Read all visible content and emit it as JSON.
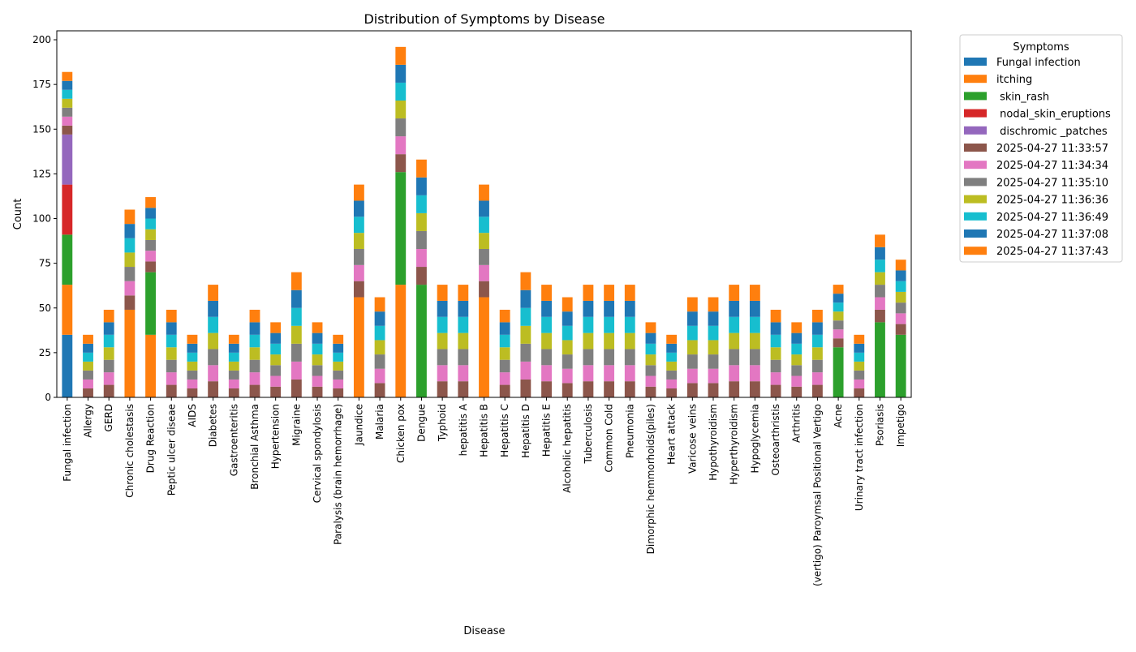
{
  "chart_data": {
    "type": "bar",
    "stacked": true,
    "title": "Distribution of Symptoms by Disease",
    "xlabel": "Disease",
    "ylabel": "Count",
    "ylim": [
      0,
      205
    ],
    "yticks": [
      0,
      25,
      50,
      75,
      100,
      125,
      150,
      175,
      200
    ],
    "grid": false,
    "legend": {
      "title": "Symptoms",
      "placement": "outside-top-right"
    },
    "categories": [
      "Fungal infection",
      "Allergy",
      "GERD",
      "Chronic cholestasis",
      "Drug Reaction",
      "Peptic ulcer diseae",
      "AIDS",
      "Diabetes",
      "Gastroenteritis",
      "Bronchial Asthma",
      "Hypertension",
      "Migraine",
      "Cervical spondylosis",
      "Paralysis (brain hemorrhage)",
      "Jaundice",
      "Malaria",
      "Chicken pox",
      "Dengue",
      "Typhoid",
      "hepatitis A",
      "Hepatitis B",
      "Hepatitis C",
      "Hepatitis D",
      "Hepatitis E",
      "Alcoholic hepatitis",
      "Tuberculosis",
      "Common Cold",
      "Pneumonia",
      "Dimorphic hemmorhoids(piles)",
      "Heart attack",
      "Varicose veins",
      "Hypothyroidism",
      "Hyperthyroidism",
      "Hypoglycemia",
      "Osteoarthristis",
      "Arthritis",
      "(vertigo) Paroymsal  Positional Vertigo",
      "Acne",
      "Urinary tract infection",
      "Psoriasis",
      "Impetigo"
    ],
    "series": [
      {
        "name": "Fungal infection",
        "color": "#1f77b4",
        "values": [
          35,
          0,
          0,
          0,
          0,
          0,
          0,
          0,
          0,
          0,
          0,
          0,
          0,
          0,
          0,
          0,
          0,
          0,
          0,
          0,
          0,
          0,
          0,
          0,
          0,
          0,
          0,
          0,
          0,
          0,
          0,
          0,
          0,
          0,
          0,
          0,
          0,
          0,
          0,
          0,
          0
        ]
      },
      {
        "name": "itching",
        "color": "#ff7f0e",
        "values": [
          28,
          0,
          0,
          49,
          35,
          0,
          0,
          0,
          0,
          0,
          0,
          0,
          0,
          0,
          56,
          0,
          63,
          0,
          0,
          0,
          56,
          0,
          0,
          0,
          0,
          0,
          0,
          0,
          0,
          0,
          0,
          0,
          0,
          0,
          0,
          0,
          0,
          0,
          0,
          0,
          0
        ]
      },
      {
        "name": " skin_rash",
        "color": "#2ca02c",
        "values": [
          28,
          0,
          0,
          0,
          35,
          0,
          0,
          0,
          0,
          0,
          0,
          0,
          0,
          0,
          0,
          0,
          63,
          63,
          0,
          0,
          0,
          0,
          0,
          0,
          0,
          0,
          0,
          0,
          0,
          0,
          0,
          0,
          0,
          0,
          0,
          0,
          0,
          28,
          0,
          42,
          35
        ]
      },
      {
        "name": " nodal_skin_eruptions",
        "color": "#d62728",
        "values": [
          28,
          0,
          0,
          0,
          0,
          0,
          0,
          0,
          0,
          0,
          0,
          0,
          0,
          0,
          0,
          0,
          0,
          0,
          0,
          0,
          0,
          0,
          0,
          0,
          0,
          0,
          0,
          0,
          0,
          0,
          0,
          0,
          0,
          0,
          0,
          0,
          0,
          0,
          0,
          0,
          0
        ]
      },
      {
        "name": " dischromic _patches",
        "color": "#9467bd",
        "values": [
          28,
          0,
          0,
          0,
          0,
          0,
          0,
          0,
          0,
          0,
          0,
          0,
          0,
          0,
          0,
          0,
          0,
          0,
          0,
          0,
          0,
          0,
          0,
          0,
          0,
          0,
          0,
          0,
          0,
          0,
          0,
          0,
          0,
          0,
          0,
          0,
          0,
          0,
          0,
          0,
          0
        ]
      },
      {
        "name": "2025-04-27 11:33:57",
        "color": "#8c564b",
        "values": [
          5,
          5,
          7,
          8,
          6,
          7,
          5,
          9,
          5,
          7,
          6,
          10,
          6,
          5,
          9,
          8,
          10,
          10,
          9,
          9,
          9,
          7,
          10,
          9,
          8,
          9,
          9,
          9,
          6,
          5,
          8,
          8,
          9,
          9,
          7,
          6,
          7,
          5,
          5,
          7,
          6
        ]
      },
      {
        "name": "2025-04-27 11:34:34",
        "color": "#e377c2",
        "values": [
          5,
          5,
          7,
          8,
          6,
          7,
          5,
          9,
          5,
          7,
          6,
          10,
          6,
          5,
          9,
          8,
          10,
          10,
          9,
          9,
          9,
          7,
          10,
          9,
          8,
          9,
          9,
          9,
          6,
          5,
          8,
          8,
          9,
          9,
          7,
          6,
          7,
          5,
          5,
          7,
          6
        ]
      },
      {
        "name": "2025-04-27 11:35:10",
        "color": "#7f7f7f",
        "values": [
          5,
          5,
          7,
          8,
          6,
          7,
          5,
          9,
          5,
          7,
          6,
          10,
          6,
          5,
          9,
          8,
          10,
          10,
          9,
          9,
          9,
          7,
          10,
          9,
          8,
          9,
          9,
          9,
          6,
          5,
          8,
          8,
          9,
          9,
          7,
          6,
          7,
          5,
          5,
          7,
          6
        ]
      },
      {
        "name": "2025-04-27 11:36:36",
        "color": "#bcbd22",
        "values": [
          5,
          5,
          7,
          8,
          6,
          7,
          5,
          9,
          5,
          7,
          6,
          10,
          6,
          5,
          9,
          8,
          10,
          10,
          9,
          9,
          9,
          7,
          10,
          9,
          8,
          9,
          9,
          9,
          6,
          5,
          8,
          8,
          9,
          9,
          7,
          6,
          7,
          5,
          5,
          7,
          6
        ]
      },
      {
        "name": "2025-04-27 11:36:49",
        "color": "#17becf",
        "values": [
          5,
          5,
          7,
          8,
          6,
          7,
          5,
          9,
          5,
          7,
          6,
          10,
          6,
          5,
          9,
          8,
          10,
          10,
          9,
          9,
          9,
          7,
          10,
          9,
          8,
          9,
          9,
          9,
          6,
          5,
          8,
          8,
          9,
          9,
          7,
          6,
          7,
          5,
          5,
          7,
          6
        ]
      },
      {
        "name": "2025-04-27 11:37:08",
        "color": "#1f77b4",
        "values": [
          5,
          5,
          7,
          8,
          6,
          7,
          5,
          9,
          5,
          7,
          6,
          10,
          6,
          5,
          9,
          8,
          10,
          10,
          9,
          9,
          9,
          7,
          10,
          9,
          8,
          9,
          9,
          9,
          6,
          5,
          8,
          8,
          9,
          9,
          7,
          6,
          7,
          5,
          5,
          7,
          6
        ]
      },
      {
        "name": "2025-04-27 11:37:43",
        "color": "#ff7f0e",
        "values": [
          5,
          5,
          7,
          8,
          6,
          7,
          5,
          9,
          5,
          7,
          6,
          10,
          6,
          5,
          9,
          8,
          10,
          10,
          9,
          9,
          9,
          7,
          10,
          9,
          8,
          9,
          9,
          9,
          6,
          5,
          8,
          8,
          9,
          9,
          7,
          6,
          7,
          5,
          5,
          7,
          6
        ]
      }
    ]
  }
}
